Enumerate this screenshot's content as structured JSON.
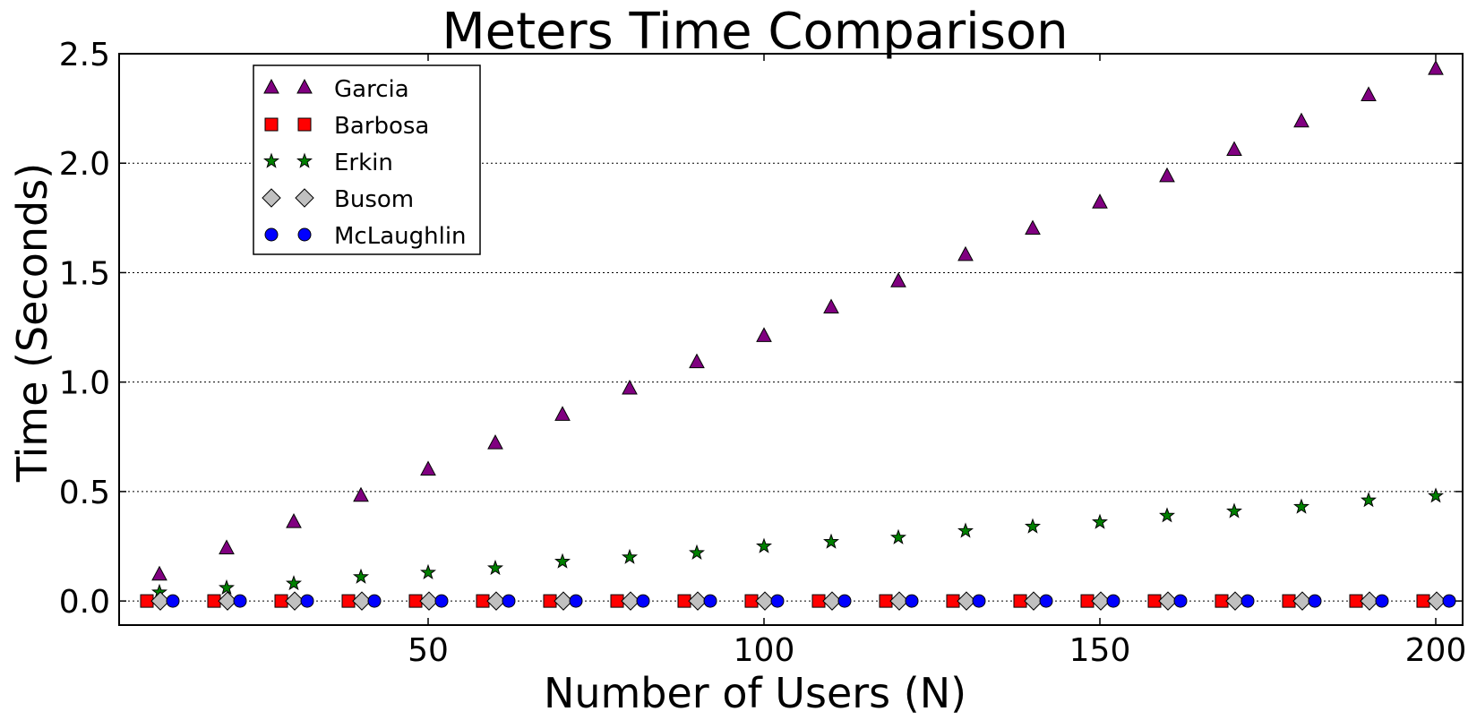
{
  "chart_data": {
    "type": "scatter",
    "title": "Meters Time Comparison",
    "xlabel": "Number of Users (N)",
    "ylabel": "Time (Seconds)",
    "xlim": [
      4,
      204
    ],
    "ylim": [
      -0.11,
      2.5
    ],
    "xticks": [
      50,
      100,
      150,
      200
    ],
    "xtick_labels": [
      "50",
      "100",
      "150",
      "200"
    ],
    "yticks": [
      0.0,
      0.5,
      1.0,
      1.5,
      2.0,
      2.5
    ],
    "ytick_labels": [
      "0.0",
      "0.5",
      "1.0",
      "1.5",
      "2.0",
      "2.5"
    ],
    "grid": "horizontal-dotted",
    "legend_position": "upper-left",
    "x": [
      10,
      20,
      30,
      40,
      50,
      60,
      70,
      80,
      90,
      100,
      110,
      120,
      130,
      140,
      150,
      160,
      170,
      180,
      190,
      200
    ],
    "series": [
      {
        "name": "Garcia",
        "marker": "triangle",
        "color": "#800080",
        "values": [
          0.12,
          0.24,
          0.36,
          0.48,
          0.6,
          0.72,
          0.85,
          0.97,
          1.09,
          1.21,
          1.34,
          1.46,
          1.58,
          1.7,
          1.82,
          1.94,
          2.06,
          2.19,
          2.31,
          2.43
        ]
      },
      {
        "name": "Barbosa",
        "marker": "square",
        "color": "#ff0000",
        "values": [
          0,
          0,
          0,
          0,
          0,
          0,
          0,
          0,
          0,
          0,
          0,
          0,
          0,
          0,
          0,
          0,
          0,
          0,
          0,
          0
        ]
      },
      {
        "name": "Erkin",
        "marker": "star",
        "color": "#008000",
        "values": [
          0.04,
          0.06,
          0.08,
          0.11,
          0.13,
          0.15,
          0.18,
          0.2,
          0.22,
          0.25,
          0.27,
          0.29,
          0.32,
          0.34,
          0.36,
          0.39,
          0.41,
          0.43,
          0.46,
          0.48
        ]
      },
      {
        "name": "Busom",
        "marker": "diamond",
        "color": "#c0c0c0",
        "values": [
          0,
          0,
          0,
          0,
          0,
          0,
          0,
          0,
          0,
          0,
          0,
          0,
          0,
          0,
          0,
          0,
          0,
          0,
          0,
          0
        ]
      },
      {
        "name": "McLaughlin",
        "marker": "circle",
        "color": "#0000ff",
        "values": [
          0,
          0,
          0,
          0,
          0,
          0,
          0,
          0,
          0,
          0,
          0,
          0,
          0,
          0,
          0,
          0,
          0,
          0,
          0,
          0
        ]
      }
    ]
  }
}
